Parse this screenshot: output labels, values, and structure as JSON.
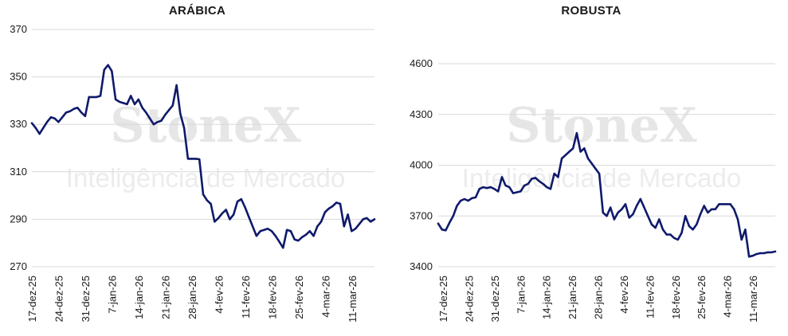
{
  "watermark": {
    "brand": "StoneX",
    "subtitle": "Inteligência de Mercado"
  },
  "chart_data": [
    {
      "type": "line",
      "title": "ARÁBICA",
      "xlabel": "",
      "ylabel": "",
      "ylim": [
        270,
        370
      ],
      "yticks": [
        "370",
        "350",
        "330",
        "310",
        "290",
        "270"
      ],
      "xticks": [
        "17-dez-25",
        "24-dez-25",
        "31-dez-25",
        "7-jan-26",
        "14-jan-26",
        "21-jan-26",
        "28-jan-26",
        "4-fev-26",
        "11-fev-26",
        "18-fev-26",
        "25-fev-26",
        "4-mar-26",
        "11-mar-26"
      ],
      "xlim": [
        0,
        90
      ],
      "grid": "horizontal",
      "color": "#0f1a6b",
      "series": [
        {
          "x": [
            0,
            1,
            2,
            3,
            4,
            5,
            6,
            7,
            8,
            9,
            10,
            11,
            12,
            13,
            14,
            15,
            16,
            17,
            18,
            19,
            20,
            21,
            22,
            23,
            24,
            25,
            26,
            27,
            28,
            29,
            30,
            31,
            32,
            33,
            34,
            35,
            36,
            37,
            38,
            39,
            40,
            41,
            42,
            43,
            44,
            45,
            46,
            47,
            48,
            49,
            50,
            51,
            52,
            53,
            54,
            55,
            56,
            57,
            58,
            59,
            60,
            61,
            62,
            63,
            64,
            65,
            66,
            67,
            68,
            69,
            70,
            71,
            72,
            73,
            74,
            75,
            76,
            77,
            78,
            79,
            80,
            81,
            82,
            83,
            84,
            85,
            86,
            87,
            88,
            89,
            90
          ],
          "y": [
            330.5,
            328.5,
            326,
            328.5,
            331,
            333,
            332.5,
            331,
            333,
            335,
            335.5,
            336.5,
            337,
            335,
            333.5,
            341.5,
            341.5,
            341.5,
            342,
            353,
            355,
            352.5,
            340.5,
            339.5,
            339,
            338.5,
            342,
            338.5,
            340.5,
            337,
            335,
            332.5,
            330,
            331,
            331.5,
            334,
            336,
            338,
            346.5,
            334.5,
            328.5,
            315.5,
            315.5,
            315.5,
            315.3,
            300.5,
            298,
            296.5,
            289,
            290.5,
            292.5,
            294,
            290,
            292,
            297.5,
            298.5,
            295,
            291,
            287,
            283,
            285,
            285.5,
            286,
            285,
            283,
            280.5,
            278,
            285.5,
            285,
            281.5,
            281,
            282.5,
            283.5,
            285,
            283,
            287,
            289,
            293,
            294.5,
            295.5,
            297,
            296.5,
            287,
            292,
            285,
            286,
            288,
            290,
            290.5,
            289,
            290
          ]
        }
      ]
    },
    {
      "type": "line",
      "title": "ROBUSTA",
      "xlabel": "",
      "ylabel": "",
      "ylim": [
        3400,
        4600
      ],
      "yticks": [
        "4600",
        "4300",
        "4000",
        "3700",
        "3400"
      ],
      "xticks": [
        "17-dez-25",
        "24-dez-25",
        "31-dez-25",
        "7-jan-26",
        "14-jan-26",
        "21-jan-26",
        "28-jan-26",
        "4-fev-26",
        "11-fev-26",
        "18-fev-26",
        "25-fev-26",
        "4-mar-26",
        "11-mar-26"
      ],
      "xlim": [
        0,
        90
      ],
      "grid": "horizontal",
      "color": "#0f1a6b",
      "series": [
        {
          "x": [
            0,
            1,
            2,
            3,
            4,
            5,
            6,
            7,
            8,
            9,
            10,
            11,
            12,
            13,
            14,
            15,
            16,
            17,
            18,
            19,
            20,
            21,
            22,
            23,
            24,
            25,
            26,
            27,
            28,
            29,
            30,
            31,
            32,
            33,
            34,
            35,
            36,
            37,
            38,
            39,
            40,
            41,
            42,
            43,
            44,
            45,
            46,
            47,
            48,
            49,
            50,
            51,
            52,
            53,
            54,
            55,
            56,
            57,
            58,
            59,
            60,
            61,
            62,
            63,
            64,
            65,
            66,
            67,
            68,
            69,
            70,
            71,
            72,
            73,
            74,
            75,
            76,
            77,
            78,
            79,
            80,
            81,
            82,
            83,
            84,
            85,
            86,
            87,
            88,
            89,
            90
          ],
          "y": [
            3655,
            3620,
            3615,
            3660,
            3700,
            3760,
            3790,
            3800,
            3790,
            3805,
            3810,
            3860,
            3870,
            3865,
            3870,
            3860,
            3845,
            3930,
            3880,
            3870,
            3835,
            3840,
            3845,
            3880,
            3890,
            3920,
            3925,
            3905,
            3890,
            3870,
            3860,
            3950,
            3930,
            4040,
            4060,
            4080,
            4100,
            4190,
            4080,
            4100,
            4040,
            4010,
            3980,
            3950,
            3720,
            3700,
            3750,
            3680,
            3720,
            3740,
            3770,
            3690,
            3710,
            3760,
            3800,
            3750,
            3700,
            3650,
            3630,
            3680,
            3620,
            3590,
            3590,
            3570,
            3560,
            3600,
            3700,
            3640,
            3620,
            3650,
            3710,
            3760,
            3720,
            3740,
            3740,
            3770,
            3770,
            3770,
            3770,
            3740,
            3680,
            3560,
            3620,
            3460,
            3465,
            3475,
            3480,
            3480,
            3485,
            3485,
            3490
          ]
        }
      ]
    }
  ]
}
